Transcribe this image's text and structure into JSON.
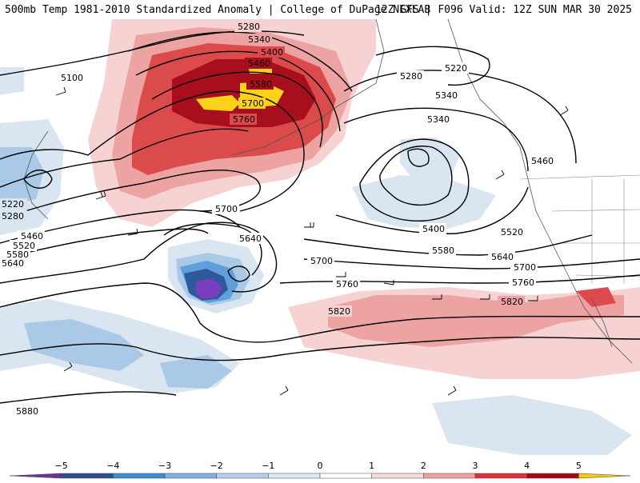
{
  "header": {
    "title_left": "500mb Temp 1981-2010 Standardized Anomaly | College of DuPage NEXLAB",
    "title_right": "12Z GFS | F096 Valid: 12Z SUN MAR 30 2025"
  },
  "map": {
    "variable": "500mb temperature standardized anomaly",
    "contours": [
      "5100",
      "5220",
      "5280",
      "5340",
      "5400",
      "5460",
      "5520",
      "5580",
      "5640",
      "5700",
      "5760",
      "5820",
      "5880"
    ],
    "contour_labels": {
      "l5100": "5100",
      "l5280a": "5280",
      "l5340a": "5340",
      "l5400a": "5400",
      "l5460a": "5460",
      "l5520a": "5520",
      "l5580a": "5580",
      "l5700a": "5700",
      "l5760a": "5760",
      "l5220b": "5220",
      "l5280b": "5280",
      "l5340b": "5340",
      "l5340c": "5340",
      "l5400c": "5400",
      "l5460c": "5460",
      "l5520c": "5520",
      "l5580c": "5580",
      "l5640c": "5640",
      "l5700c": "5700",
      "l5760c": "5760",
      "l5820c": "5820",
      "l5220w": "5220",
      "l5280w": "5280",
      "l5460w": "5460",
      "l5520w": "5520",
      "l5580w": "5580",
      "l5640w": "5640",
      "l5700m": "5700",
      "l5640m": "5640",
      "l5700s": "5700",
      "l5760s": "5760",
      "l5820s": "5820",
      "l5880s": "5880"
    },
    "colors": {
      "pos1": "#f6d2d2",
      "pos2": "#eea3a3",
      "pos3": "#dc4b4b",
      "pos4": "#a80f1c",
      "pos5": "#ffd21a",
      "neg1": "#d9e6f2",
      "neg2": "#a9c9e6",
      "neg3": "#5fa0dc",
      "neg4": "#2e5a9c",
      "neg5": "#7a3fbf"
    }
  },
  "colorbar": {
    "ticks": [
      "−5",
      "−4",
      "−3",
      "−2",
      "−1",
      "0",
      "1",
      "2",
      "3",
      "4",
      "5"
    ],
    "colors": [
      "#7030a0",
      "#2c4e8c",
      "#3a8fd4",
      "#7cb2e0",
      "#b4d0ec",
      "#dce8f4",
      "#ffffff",
      "#f8dada",
      "#eea0a0",
      "#d8333b",
      "#a00a18",
      "#ffc800"
    ]
  }
}
